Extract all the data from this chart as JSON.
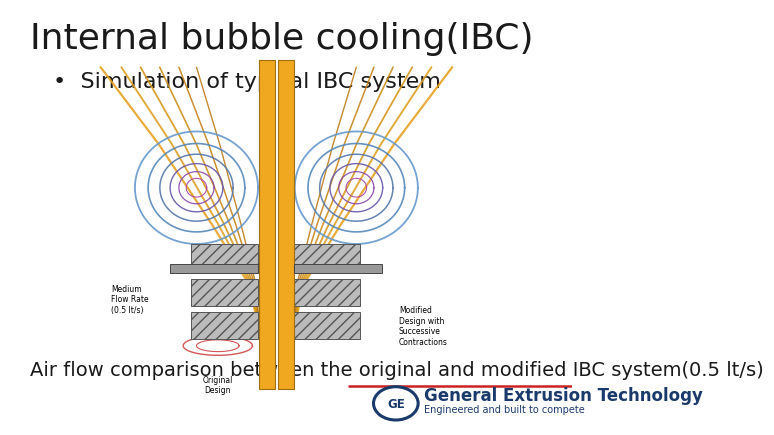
{
  "title": "Internal bubble cooling(IBC)",
  "bullet": "Simulation of typical IBC system",
  "caption": "Air flow comparison between the original and modified IBC system(0.5 lt/s)",
  "logo_text": "General Extrusion Technology",
  "logo_subtext": "Engineered and built to compete",
  "bg_color": "#ffffff",
  "title_fontsize": 26,
  "bullet_fontsize": 16,
  "caption_fontsize": 14,
  "logo_fontsize": 12,
  "logo_color": "#1a3a6b",
  "separator_color": "#cc2222",
  "title_color": "#1a1a1a",
  "text_color": "#1a1a1a"
}
